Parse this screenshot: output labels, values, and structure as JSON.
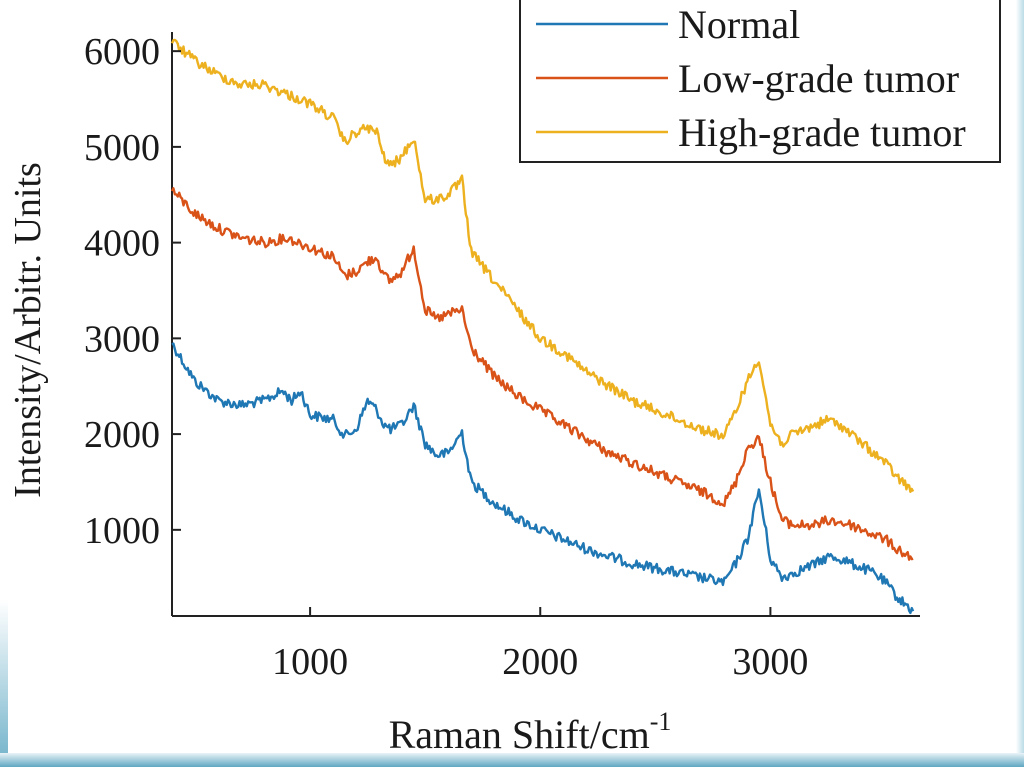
{
  "chart_data": {
    "type": "line",
    "xlabel": "Raman Shift/cm",
    "xlabel_superscript": "-1",
    "ylabel": "Intensity/Arbitr. Units",
    "xlim": [
      400,
      3650
    ],
    "ylim": [
      100,
      6200
    ],
    "xticks": [
      "1000",
      "2000",
      "3000"
    ],
    "yticks": [
      "1000",
      "2000",
      "3000",
      "4000",
      "5000",
      "6000"
    ],
    "legend_position": "top-right",
    "grid": false,
    "series": [
      {
        "name": "Normal",
        "color": "#1f77b4",
        "x": [
          400,
          500,
          600,
          700,
          800,
          880,
          920,
          960,
          1000,
          1100,
          1150,
          1200,
          1250,
          1290,
          1320,
          1350,
          1400,
          1450,
          1500,
          1550,
          1600,
          1660,
          1700,
          1800,
          1900,
          2000,
          2100,
          2200,
          2300,
          2400,
          2500,
          2600,
          2700,
          2800,
          2850,
          2900,
          2950,
          3000,
          3050,
          3100,
          3150,
          3200,
          3250,
          3300,
          3350,
          3400,
          3450,
          3500,
          3550,
          3620
        ],
        "y": [
          2950,
          2550,
          2350,
          2300,
          2350,
          2450,
          2350,
          2450,
          2200,
          2150,
          1980,
          2050,
          2350,
          2250,
          2100,
          2050,
          2100,
          2300,
          1900,
          1780,
          1800,
          2020,
          1500,
          1280,
          1120,
          1000,
          900,
          800,
          720,
          650,
          600,
          550,
          500,
          450,
          650,
          900,
          1420,
          700,
          500,
          550,
          600,
          650,
          720,
          700,
          650,
          600,
          550,
          450,
          300,
          150
        ]
      },
      {
        "name": "Low-grade tumor",
        "color": "#d95319",
        "x": [
          400,
          500,
          600,
          700,
          800,
          900,
          1000,
          1100,
          1150,
          1200,
          1250,
          1290,
          1320,
          1350,
          1400,
          1450,
          1500,
          1550,
          1600,
          1660,
          1700,
          1800,
          1900,
          2000,
          2100,
          2200,
          2300,
          2400,
          2500,
          2600,
          2700,
          2800,
          2850,
          2900,
          2950,
          3000,
          3050,
          3100,
          3150,
          3200,
          3250,
          3300,
          3350,
          3400,
          3450,
          3500,
          3550,
          3620
        ],
        "y": [
          4550,
          4300,
          4150,
          4050,
          4000,
          4050,
          3950,
          3850,
          3650,
          3700,
          3800,
          3850,
          3650,
          3600,
          3700,
          3950,
          3300,
          3200,
          3250,
          3300,
          2900,
          2600,
          2400,
          2250,
          2100,
          1950,
          1800,
          1700,
          1600,
          1500,
          1400,
          1280,
          1500,
          1850,
          1960,
          1500,
          1100,
          1050,
          1050,
          1050,
          1100,
          1080,
          1050,
          1000,
          950,
          900,
          800,
          700
        ]
      },
      {
        "name": "High-grade tumor",
        "color": "#edb120",
        "x": [
          400,
          500,
          600,
          700,
          800,
          900,
          1000,
          1100,
          1150,
          1200,
          1250,
          1290,
          1320,
          1350,
          1400,
          1450,
          1480,
          1500,
          1550,
          1600,
          1660,
          1700,
          1800,
          1900,
          2000,
          2100,
          2200,
          2300,
          2400,
          2500,
          2600,
          2700,
          2800,
          2850,
          2900,
          2950,
          3000,
          3050,
          3100,
          3150,
          3200,
          3250,
          3300,
          3350,
          3400,
          3450,
          3500,
          3550,
          3620
        ],
        "y": [
          6100,
          5900,
          5750,
          5650,
          5650,
          5550,
          5450,
          5300,
          5050,
          5150,
          5200,
          5150,
          4900,
          4800,
          4900,
          5100,
          4700,
          4450,
          4450,
          4500,
          4650,
          3900,
          3600,
          3300,
          3000,
          2850,
          2650,
          2500,
          2350,
          2250,
          2150,
          2050,
          1980,
          2250,
          2550,
          2800,
          2100,
          1900,
          2000,
          2050,
          2100,
          2150,
          2100,
          2000,
          1900,
          1800,
          1700,
          1550,
          1400
        ]
      }
    ]
  }
}
